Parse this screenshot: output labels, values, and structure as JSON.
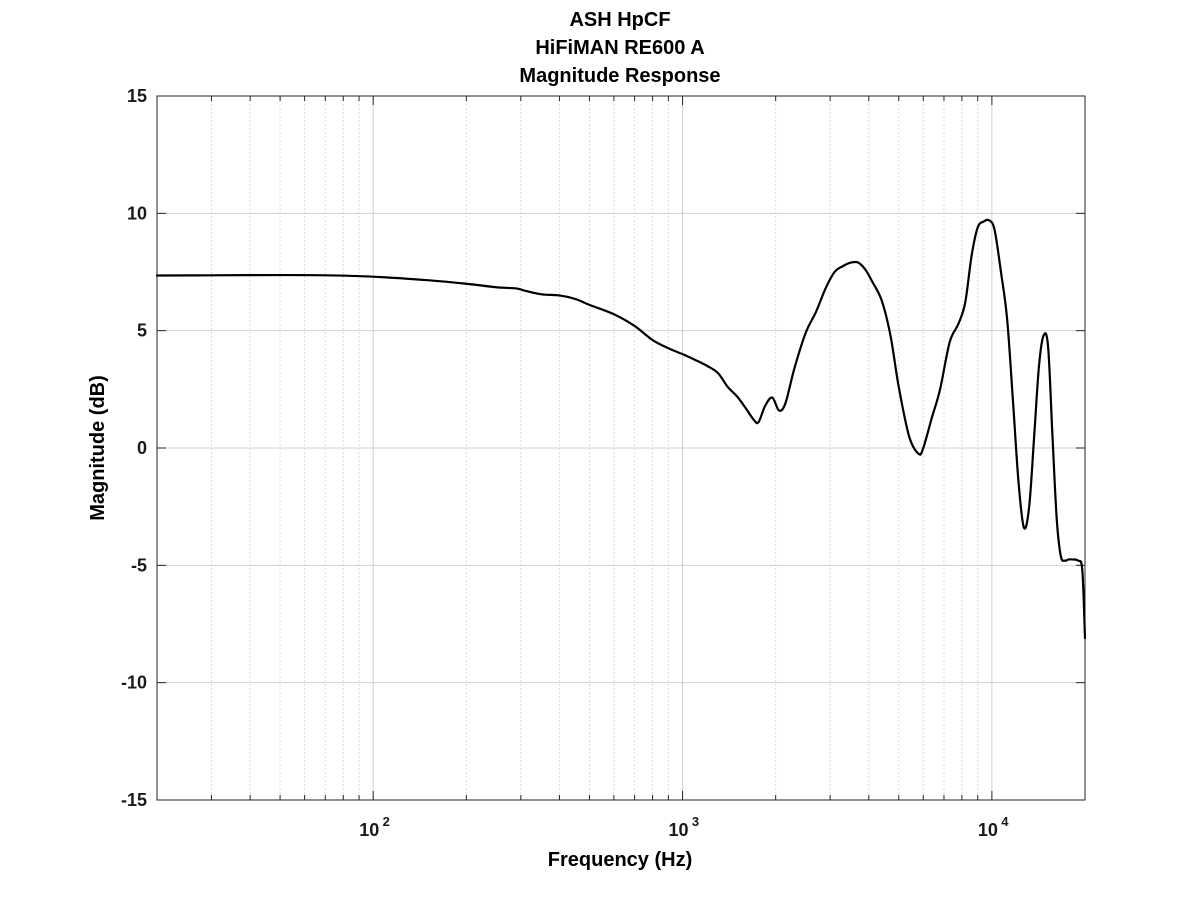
{
  "chart_data": {
    "type": "line",
    "title_lines": [
      "ASH HpCF",
      "HiFiMAN RE600 A",
      "Magnitude Response"
    ],
    "xlabel": "Frequency (Hz)",
    "ylabel": "Magnitude (dB)",
    "x_scale": "log",
    "xlim": [
      20,
      20000
    ],
    "ylim": [
      -15,
      15
    ],
    "y_ticks": [
      -15,
      -10,
      -5,
      0,
      5,
      10,
      15
    ],
    "x_ticks": [
      {
        "value": 100,
        "base": "10",
        "exp": "2"
      },
      {
        "value": 1000,
        "base": "10",
        "exp": "3"
      },
      {
        "value": 10000,
        "base": "10",
        "exp": "4"
      }
    ],
    "grid": true,
    "line_color": "#000000",
    "series": [
      {
        "x": [
          20,
          30,
          50,
          70,
          100,
          150,
          200,
          250,
          290,
          310,
          350,
          400,
          450,
          500,
          600,
          700,
          800,
          900,
          1000,
          1100,
          1200,
          1300,
          1400,
          1500,
          1600,
          1700,
          1760,
          1850,
          1950,
          2050,
          2150,
          2300,
          2500,
          2700,
          2900,
          3100,
          3300,
          3500,
          3700,
          3900,
          4100,
          4400,
          4700,
          5000,
          5400,
          5800,
          6000,
          6400,
          6800,
          7300,
          7800,
          8200,
          8600,
          9000,
          9400,
          9800,
          10200,
          10700,
          11200,
          11700,
          12200,
          12700,
          13200,
          13700,
          14200,
          14700,
          15200,
          15700,
          16200,
          16700,
          17200,
          17700,
          18200,
          19000,
          19600,
          20000
        ],
        "y": [
          7.35,
          7.36,
          7.37,
          7.36,
          7.3,
          7.15,
          7.0,
          6.85,
          6.8,
          6.7,
          6.55,
          6.5,
          6.35,
          6.1,
          5.7,
          5.2,
          4.6,
          4.25,
          4.0,
          3.75,
          3.5,
          3.2,
          2.6,
          2.2,
          1.7,
          1.2,
          1.1,
          1.8,
          2.15,
          1.6,
          1.9,
          3.4,
          4.9,
          5.8,
          6.8,
          7.5,
          7.75,
          7.9,
          7.9,
          7.6,
          7.1,
          6.3,
          4.8,
          2.6,
          0.5,
          -0.25,
          0.0,
          1.3,
          2.5,
          4.5,
          5.3,
          6.2,
          8.2,
          9.4,
          9.65,
          9.7,
          9.3,
          7.5,
          5.5,
          2.0,
          -1.5,
          -3.4,
          -2.5,
          0.5,
          3.5,
          4.8,
          4.3,
          0.5,
          -3.0,
          -4.6,
          -4.8,
          -4.75,
          -4.75,
          -4.8,
          -5.2,
          -8.1
        ]
      }
    ]
  }
}
